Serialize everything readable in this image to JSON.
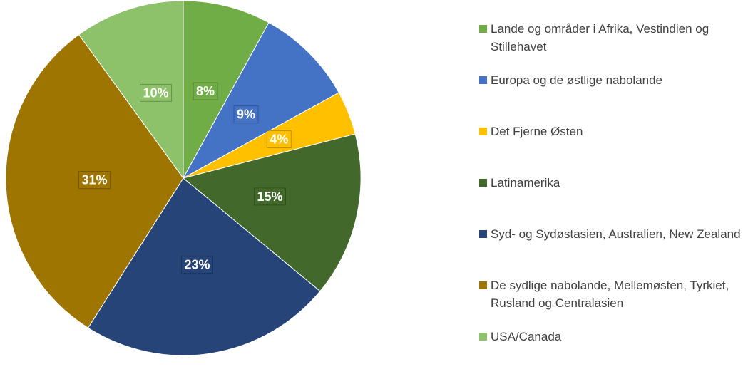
{
  "chart_data": {
    "type": "pie",
    "categories": [
      "Lande og områder i Afrika, Vestindien og Stillehavet",
      "Europa og de østlige nabolande",
      "Det Fjerne Østen",
      "Latinamerika",
      "Syd- og Sydøstasien, Australien, New Zealand",
      "De sydlige nabolande, Mellemøsten, Tyrkiet, Rusland og Centralasien",
      "USA/Canada"
    ],
    "values": [
      8,
      9,
      4,
      15,
      23,
      31,
      10
    ],
    "value_labels": [
      "8%",
      "9%",
      "4%",
      "15%",
      "23%",
      "31%",
      "10%"
    ],
    "colors": [
      "#70ad47",
      "#4472c4",
      "#ffc000",
      "#43682b",
      "#264478",
      "#9e7500",
      "#8dc26a"
    ],
    "legend": "right"
  }
}
